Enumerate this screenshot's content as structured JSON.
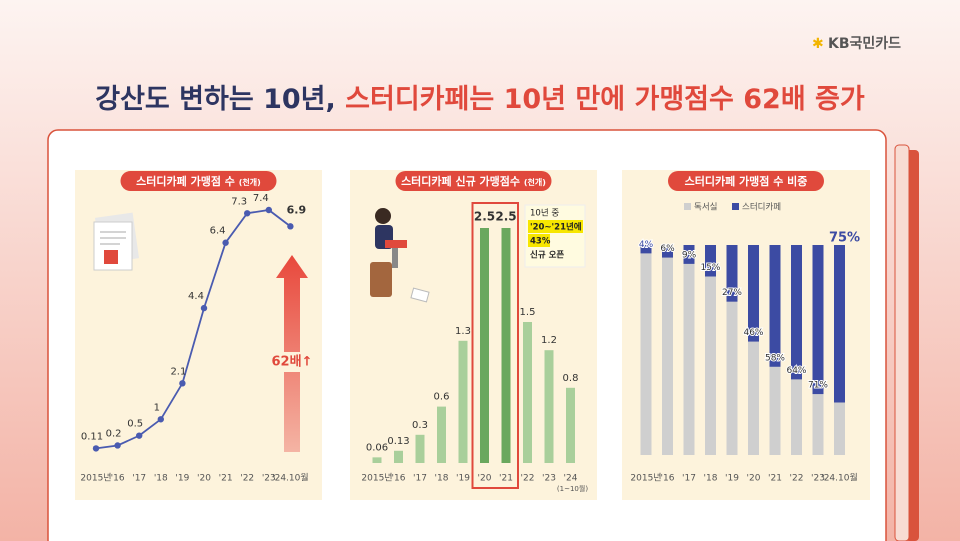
{
  "logo": "KB국민카드",
  "title_part1": "강산도 변하는 10년,",
  "title_part2": "스터디카페는 10년 만에 가맹점수 62배 증가",
  "chart_data": [
    {
      "type": "line",
      "title": "스터디카페 가맹점 수",
      "unit": "(천개)",
      "categories": [
        "2015년",
        "'16",
        "'17",
        "'18",
        "'19",
        "'20",
        "'21",
        "'22",
        "'23",
        "'24.10월"
      ],
      "values": [
        0.11,
        0.2,
        0.5,
        1,
        2.1,
        4.4,
        6.4,
        7.3,
        7.4,
        6.9
      ],
      "color": "#4a5bb0",
      "annotation": "62배↑"
    },
    {
      "type": "bar",
      "title": "스터디카페 신규 가맹점수",
      "unit": "(천개)",
      "categories": [
        "2015년",
        "'16",
        "'17",
        "'18",
        "'19",
        "'20",
        "'21",
        "'22",
        "'23",
        "'24"
      ],
      "category_note": "(1~10월)",
      "values": [
        0.06,
        0.13,
        0.3,
        0.6,
        1.3,
        2.5,
        2.5,
        1.5,
        1.2,
        0.8
      ],
      "colors": [
        "#a9cf9b",
        "#a9cf9b",
        "#a9cf9b",
        "#a9cf9b",
        "#a9cf9b",
        "#6aa85e",
        "#6aa85e",
        "#a9cf9b",
        "#a9cf9b",
        "#a9cf9b"
      ],
      "annotation": [
        "10년 중",
        "'20~'21년에",
        "43%",
        "신규 오픈"
      ]
    },
    {
      "type": "stacked_bar",
      "title": "스터디카페 가맹점 수 비중",
      "categories": [
        "2015년",
        "'16",
        "'17",
        "'18",
        "'19",
        "'20",
        "'21",
        "'22",
        "'23",
        "'24.10월"
      ],
      "series": [
        {
          "name": "독서실",
          "color": "#cfcfcf",
          "values": [
            96,
            94,
            91,
            85,
            73,
            54,
            42,
            36,
            29,
            25
          ]
        },
        {
          "name": "스터디카페",
          "color": "#3c4ba3",
          "values": [
            4,
            6,
            9,
            15,
            27,
            46,
            58,
            64,
            71,
            75
          ],
          "value_labels": [
            "4%",
            "6%",
            "9%",
            "15%",
            "27%",
            "46%",
            "58%",
            "64%",
            "71%",
            "75%"
          ]
        }
      ]
    }
  ]
}
